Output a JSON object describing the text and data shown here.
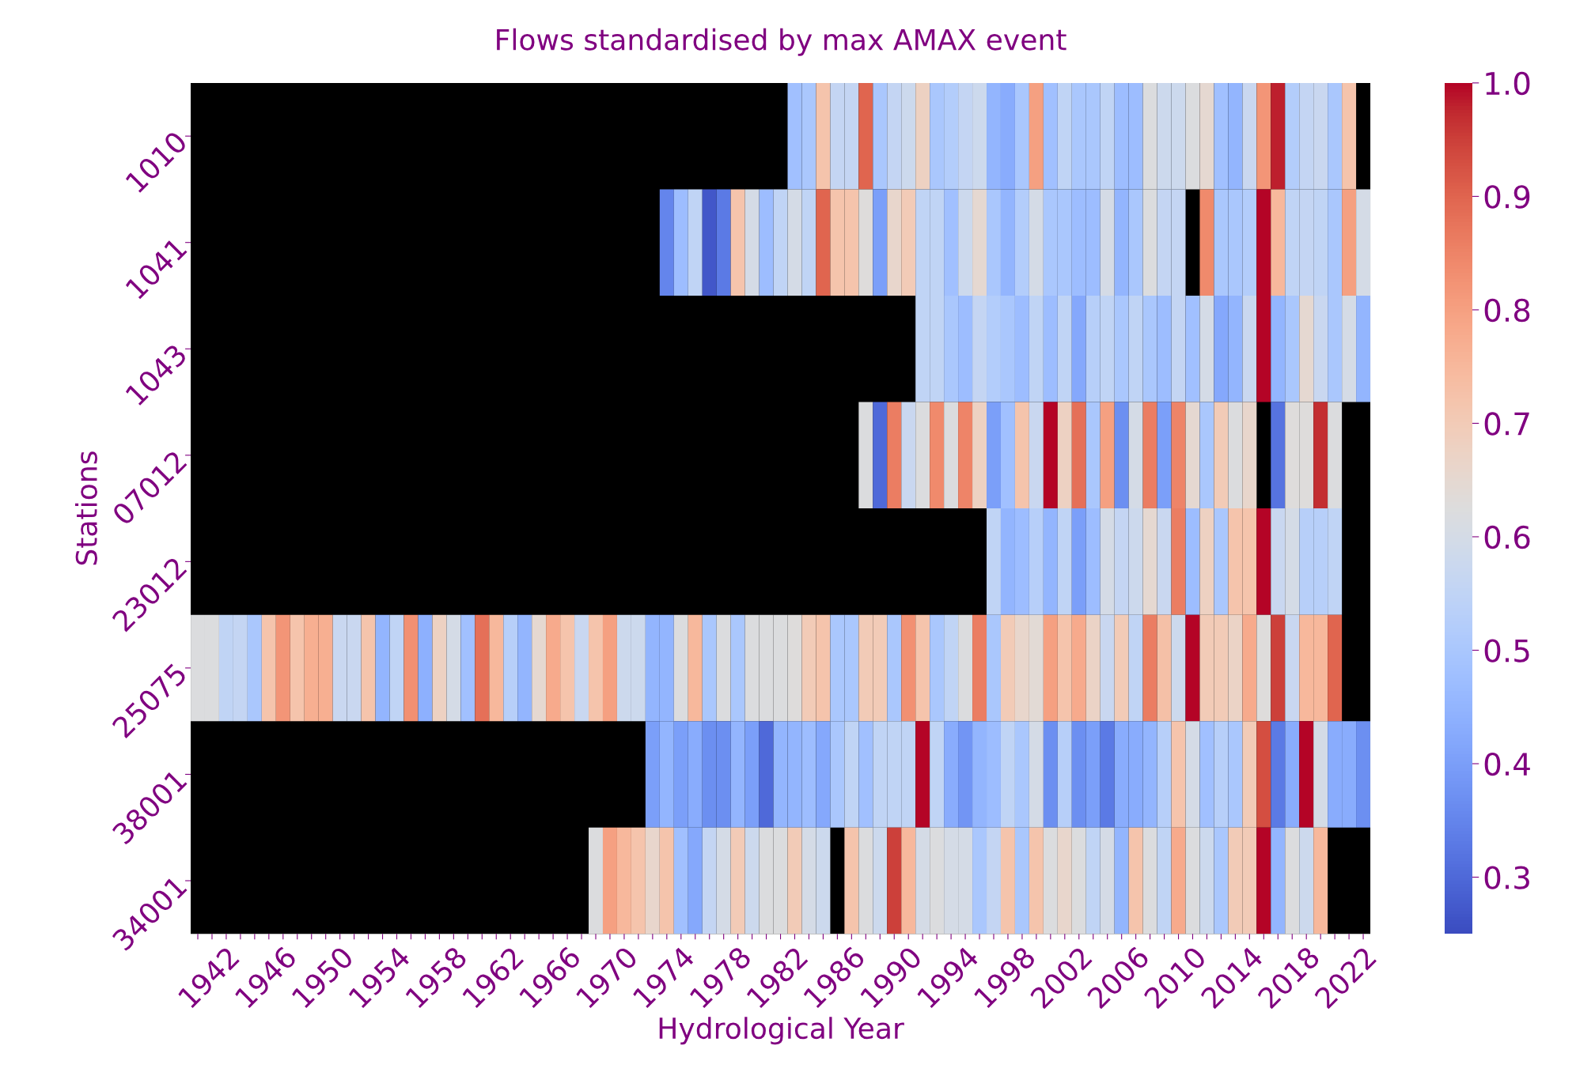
{
  "chart_data": {
    "type": "heatmap",
    "title": "Flows standardised by max AMAX event",
    "xlabel": "Hydrological Year",
    "ylabel": "Stations",
    "categories": [
      null,
      null,
      "1942",
      null,
      null,
      null,
      "1946",
      null,
      null,
      null,
      "1950",
      null,
      null,
      null,
      "1954",
      null,
      null,
      null,
      "1958",
      null,
      null,
      null,
      "1962",
      null,
      null,
      null,
      "1966",
      null,
      null,
      null,
      "1970",
      null,
      null,
      null,
      "1974",
      null,
      null,
      null,
      "1978",
      null,
      null,
      null,
      "1982",
      null,
      null,
      null,
      "1986",
      null,
      null,
      null,
      "1990",
      null,
      null,
      null,
      "1994",
      null,
      null,
      null,
      "1998",
      null,
      null,
      null,
      "2002",
      null,
      null,
      null,
      "2006",
      null,
      null,
      null,
      "2010",
      null,
      null,
      null,
      "2014",
      null,
      null,
      null,
      "2018",
      null,
      null,
      null,
      "2022"
    ],
    "y_categories": [
      "1010",
      "1041",
      "1043",
      "07012",
      "23012",
      "25075",
      "38001",
      "34001"
    ],
    "cells": [
      [
        null,
        null,
        null,
        null,
        null,
        null,
        null,
        null,
        null,
        null,
        null,
        null,
        null,
        null,
        null,
        null,
        null,
        null,
        null,
        null,
        null,
        null,
        null,
        null,
        null,
        null,
        null,
        null,
        null,
        null,
        null,
        null,
        null,
        null,
        null,
        null,
        null,
        null,
        null,
        null,
        null,
        null,
        0.48,
        0.5,
        0.72,
        0.56,
        0.56,
        0.9,
        0.5,
        0.56,
        0.58,
        0.68,
        0.5,
        0.52,
        0.56,
        0.58,
        0.45,
        0.43,
        0.5,
        0.8,
        0.48,
        0.55,
        0.5,
        0.5,
        0.55,
        0.47,
        0.47,
        0.62,
        0.58,
        0.58,
        0.62,
        0.65,
        0.48,
        0.45,
        0.57,
        0.82,
        0.98,
        0.52,
        0.56,
        0.57,
        0.5,
        0.72,
        null
      ],
      [
        null,
        null,
        null,
        null,
        null,
        null,
        null,
        null,
        null,
        null,
        null,
        null,
        null,
        null,
        null,
        null,
        null,
        null,
        null,
        null,
        null,
        null,
        null,
        null,
        null,
        null,
        null,
        null,
        null,
        null,
        null,
        null,
        null,
        0.35,
        0.47,
        0.55,
        0.27,
        0.33,
        0.72,
        0.6,
        0.47,
        0.55,
        0.6,
        0.55,
        0.9,
        0.72,
        0.72,
        0.63,
        0.4,
        0.66,
        0.7,
        0.55,
        0.55,
        0.48,
        0.58,
        0.65,
        0.5,
        0.45,
        0.52,
        0.6,
        0.5,
        0.5,
        0.47,
        0.47,
        0.6,
        0.45,
        0.5,
        0.62,
        0.56,
        0.56,
        null,
        0.84,
        0.5,
        0.5,
        0.52,
        1.0,
        0.75,
        0.55,
        0.56,
        0.55,
        0.5,
        0.8,
        0.6
      ],
      [
        null,
        null,
        null,
        null,
        null,
        null,
        null,
        null,
        null,
        null,
        null,
        null,
        null,
        null,
        null,
        null,
        null,
        null,
        null,
        null,
        null,
        null,
        null,
        null,
        null,
        null,
        null,
        null,
        null,
        null,
        null,
        null,
        null,
        null,
        null,
        null,
        null,
        null,
        null,
        null,
        null,
        null,
        null,
        null,
        null,
        null,
        null,
        null,
        null,
        null,
        null,
        0.55,
        0.55,
        0.5,
        0.47,
        0.56,
        0.52,
        0.5,
        0.47,
        0.55,
        0.47,
        0.55,
        0.42,
        0.53,
        0.55,
        0.5,
        0.55,
        0.5,
        0.47,
        0.56,
        0.48,
        0.6,
        0.42,
        0.45,
        0.57,
        1.0,
        0.45,
        0.5,
        0.65,
        0.57,
        0.5,
        0.6,
        0.45
      ],
      [
        null,
        null,
        null,
        null,
        null,
        null,
        null,
        null,
        null,
        null,
        null,
        null,
        null,
        null,
        null,
        null,
        null,
        null,
        null,
        null,
        null,
        null,
        null,
        null,
        null,
        null,
        null,
        null,
        null,
        null,
        null,
        null,
        null,
        null,
        null,
        null,
        null,
        null,
        null,
        null,
        null,
        null,
        null,
        null,
        null,
        null,
        null,
        0.62,
        0.3,
        0.86,
        0.57,
        0.62,
        0.84,
        0.62,
        0.85,
        0.68,
        0.4,
        0.48,
        0.72,
        0.57,
        1.0,
        0.68,
        0.88,
        0.5,
        0.8,
        0.37,
        0.6,
        0.86,
        0.4,
        0.85,
        0.65,
        0.5,
        0.7,
        0.62,
        0.66,
        null,
        0.32,
        0.63,
        0.63,
        0.97,
        0.62,
        null,
        null
      ],
      [
        null,
        null,
        null,
        null,
        null,
        null,
        null,
        null,
        null,
        null,
        null,
        null,
        null,
        null,
        null,
        null,
        null,
        null,
        null,
        null,
        null,
        null,
        null,
        null,
        null,
        null,
        null,
        null,
        null,
        null,
        null,
        null,
        null,
        null,
        null,
        null,
        null,
        null,
        null,
        null,
        null,
        null,
        null,
        null,
        null,
        null,
        null,
        null,
        null,
        null,
        null,
        null,
        null,
        null,
        null,
        null,
        0.55,
        0.45,
        0.47,
        0.53,
        0.45,
        0.55,
        0.4,
        0.47,
        0.6,
        0.56,
        0.58,
        0.65,
        0.57,
        0.86,
        0.47,
        0.68,
        0.5,
        0.72,
        0.72,
        1.0,
        0.57,
        0.6,
        0.53,
        0.53,
        0.55,
        null,
        null
      ],
      [
        0.62,
        0.62,
        0.55,
        0.56,
        0.5,
        0.72,
        0.82,
        0.72,
        0.77,
        0.77,
        0.57,
        0.57,
        0.72,
        0.45,
        0.55,
        0.83,
        0.44,
        0.68,
        0.6,
        0.48,
        0.88,
        0.75,
        0.53,
        0.45,
        0.65,
        0.78,
        0.72,
        0.57,
        0.72,
        0.8,
        0.58,
        0.58,
        0.45,
        0.45,
        0.62,
        0.75,
        0.5,
        0.62,
        0.5,
        0.62,
        0.62,
        0.62,
        0.63,
        0.7,
        0.72,
        0.5,
        0.5,
        0.7,
        0.7,
        0.5,
        0.83,
        0.72,
        0.5,
        0.55,
        0.62,
        0.86,
        0.5,
        0.7,
        0.66,
        0.64,
        0.8,
        0.72,
        0.78,
        0.67,
        0.57,
        0.7,
        0.55,
        0.86,
        0.73,
        0.58,
        1.0,
        0.7,
        0.7,
        0.67,
        0.78,
        0.63,
        0.95,
        0.57,
        0.75,
        0.75,
        0.9,
        null,
        null
      ],
      [
        null,
        null,
        null,
        null,
        null,
        null,
        null,
        null,
        null,
        null,
        null,
        null,
        null,
        null,
        null,
        null,
        null,
        null,
        null,
        null,
        null,
        null,
        null,
        null,
        null,
        null,
        null,
        null,
        null,
        null,
        null,
        null,
        0.4,
        0.45,
        0.4,
        0.43,
        0.37,
        0.37,
        0.45,
        0.4,
        0.3,
        0.45,
        0.45,
        0.47,
        0.42,
        0.5,
        0.55,
        0.48,
        0.55,
        0.55,
        0.55,
        1.0,
        0.55,
        0.43,
        0.38,
        0.45,
        0.47,
        0.55,
        0.5,
        0.6,
        0.37,
        0.53,
        0.37,
        0.4,
        0.33,
        0.43,
        0.43,
        0.45,
        0.53,
        0.72,
        0.6,
        0.48,
        0.53,
        0.5,
        0.7,
        0.93,
        0.33,
        0.43,
        1.0,
        0.6,
        0.43,
        0.43,
        0.37
      ],
      [
        null,
        null,
        null,
        null,
        null,
        null,
        null,
        null,
        null,
        null,
        null,
        null,
        null,
        null,
        null,
        null,
        null,
        null,
        null,
        null,
        null,
        null,
        null,
        null,
        null,
        null,
        null,
        null,
        0.62,
        0.8,
        0.75,
        0.72,
        0.66,
        0.72,
        0.48,
        0.42,
        0.56,
        0.6,
        0.7,
        0.58,
        0.62,
        0.62,
        0.7,
        0.6,
        0.58,
        null,
        0.72,
        0.62,
        0.58,
        0.95,
        0.75,
        0.6,
        0.62,
        0.6,
        0.6,
        0.5,
        0.56,
        0.72,
        0.5,
        0.72,
        0.62,
        0.66,
        0.62,
        0.55,
        0.6,
        0.45,
        0.72,
        0.62,
        0.55,
        0.78,
        0.62,
        0.58,
        0.5,
        0.7,
        0.7,
        1.0,
        0.45,
        0.62,
        0.58,
        0.75,
        null,
        null,
        null
      ]
    ],
    "clim": [
      0.25,
      1.0
    ],
    "cticks": [
      0.3,
      0.4,
      0.5,
      0.6,
      0.7,
      0.8,
      0.9,
      {
        "value": 1,
        "label": "1.0"
      }
    ]
  }
}
